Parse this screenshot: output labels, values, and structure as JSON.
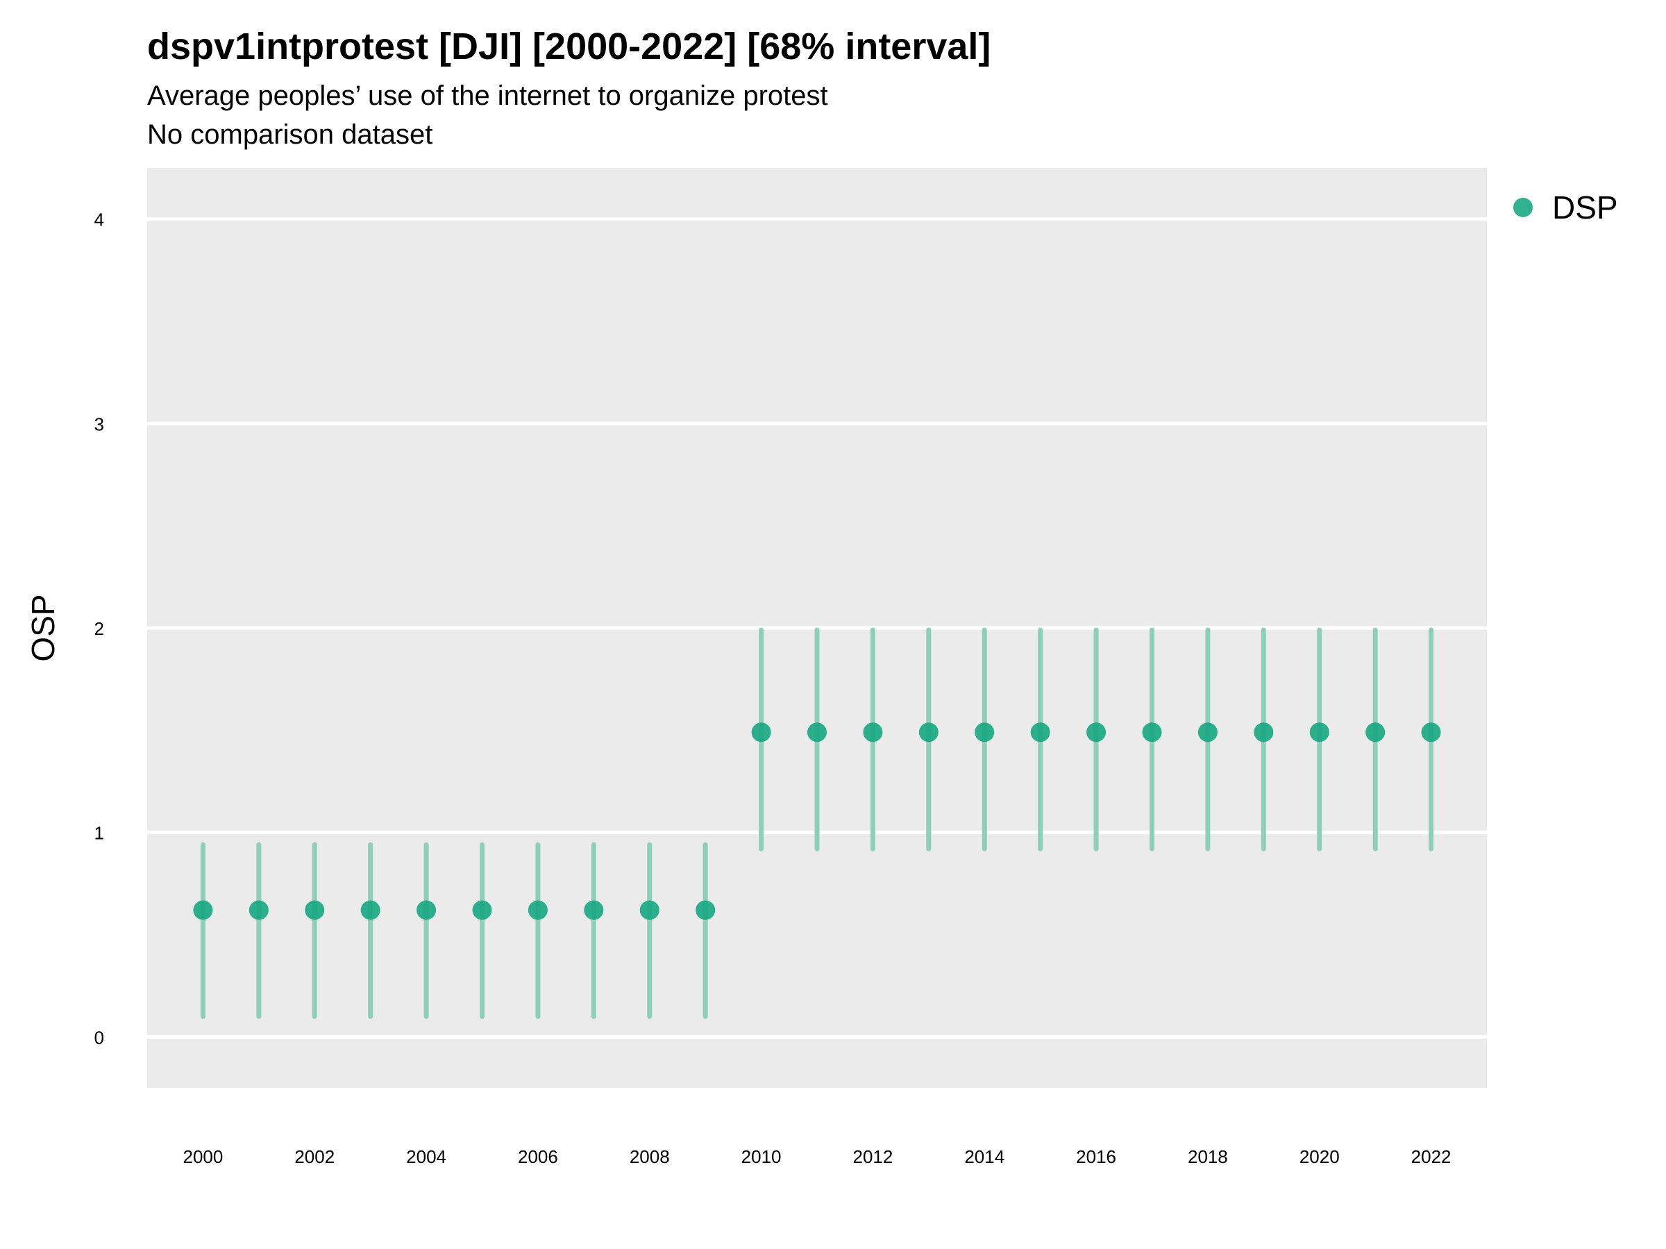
{
  "title": "dspv1intprotest [DJI] [2000-2022] [68% interval]",
  "subtitle": "Average peoples’ use of the internet to organize protest",
  "subtitle2": "No comparison dataset",
  "legend": {
    "label": "DSP",
    "color": "#1aa883"
  },
  "colors": {
    "panel": "#ebebeb",
    "grid": "#ffffff",
    "point": "#1aa883",
    "interval": "#8ecfba"
  },
  "chart_data": {
    "type": "scatter",
    "title": "dspv1intprotest [DJI] [2000-2022] [68% interval]",
    "ylabel": "OSP",
    "xlabel": "",
    "ylim": [
      -0.25,
      4.25
    ],
    "xlim": [
      1999,
      2023
    ],
    "yticks": [
      0,
      1,
      2,
      3,
      4
    ],
    "xticks": [
      2000,
      2002,
      2004,
      2006,
      2008,
      2010,
      2012,
      2014,
      2016,
      2018,
      2020,
      2022
    ],
    "grid": true,
    "legend_position": "top-right",
    "series": [
      {
        "name": "DSP",
        "x": [
          2000,
          2001,
          2002,
          2003,
          2004,
          2005,
          2006,
          2007,
          2008,
          2009,
          2010,
          2011,
          2012,
          2013,
          2014,
          2015,
          2016,
          2017,
          2018,
          2019,
          2020,
          2021,
          2022
        ],
        "y": [
          0.62,
          0.62,
          0.62,
          0.62,
          0.62,
          0.62,
          0.62,
          0.62,
          0.62,
          0.62,
          1.49,
          1.49,
          1.49,
          1.49,
          1.49,
          1.49,
          1.49,
          1.49,
          1.49,
          1.49,
          1.49,
          1.49,
          1.49
        ],
        "lower": [
          0.1,
          0.1,
          0.1,
          0.1,
          0.1,
          0.1,
          0.1,
          0.1,
          0.1,
          0.1,
          0.92,
          0.92,
          0.92,
          0.92,
          0.92,
          0.92,
          0.92,
          0.92,
          0.92,
          0.92,
          0.92,
          0.92,
          0.92
        ],
        "upper": [
          0.94,
          0.94,
          0.94,
          0.94,
          0.94,
          0.94,
          0.94,
          0.94,
          0.94,
          0.94,
          1.99,
          1.99,
          1.99,
          1.99,
          1.99,
          1.99,
          1.99,
          1.99,
          1.99,
          1.99,
          1.99,
          1.99,
          1.99
        ]
      }
    ]
  }
}
